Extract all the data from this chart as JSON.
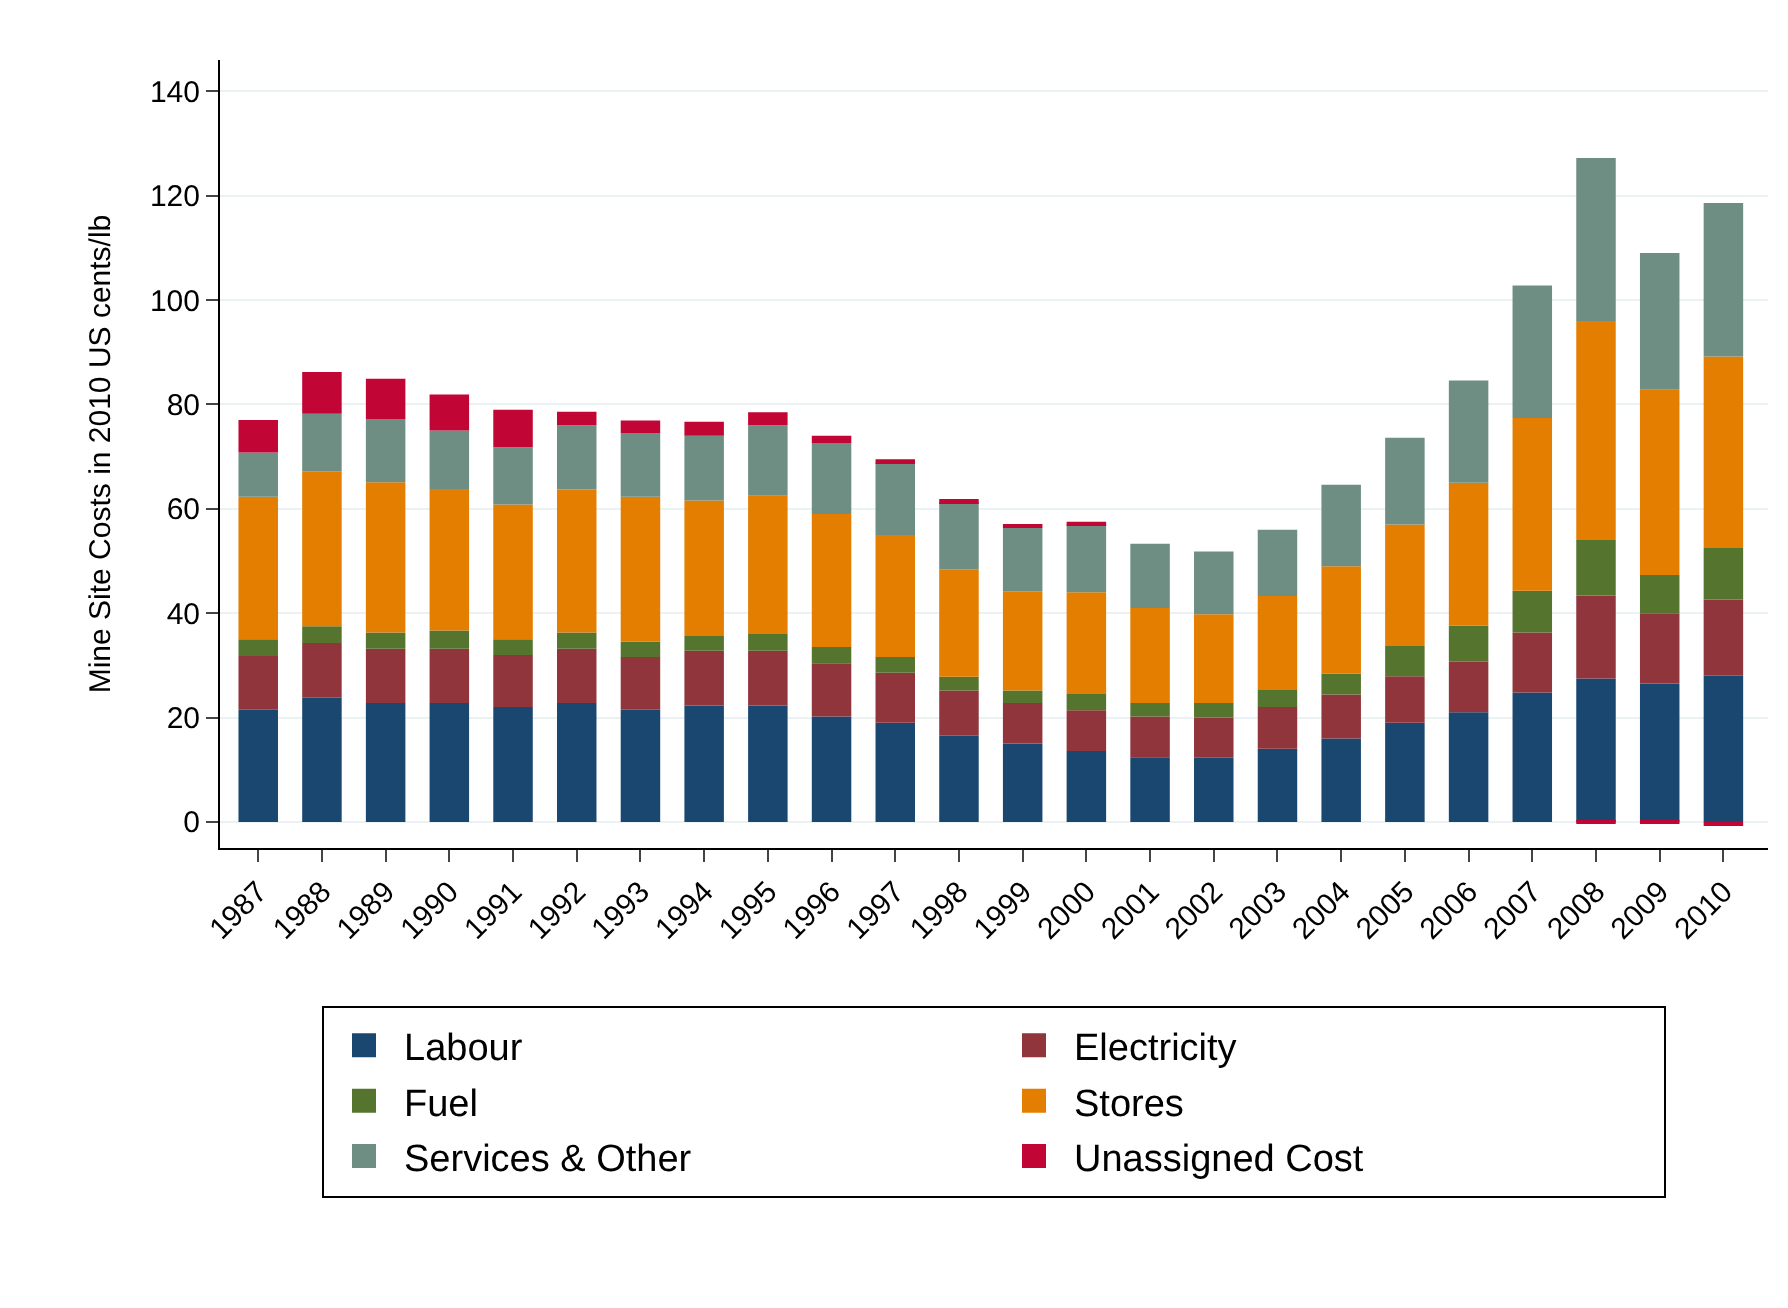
{
  "chart_data": {
    "type": "bar",
    "stacked": true,
    "ylabel": "Mine Site Costs in 2010 US cents/lb",
    "categories": [
      "1987",
      "1988",
      "1989",
      "1990",
      "1991",
      "1992",
      "1993",
      "1994",
      "1995",
      "1996",
      "1997",
      "1998",
      "1999",
      "2000",
      "2001",
      "2002",
      "2003",
      "2004",
      "2005",
      "2006",
      "2007",
      "2008",
      "2009",
      "2010"
    ],
    "series": [
      {
        "name": "Labour",
        "color": "#1a476f",
        "values": [
          21.5,
          23.8,
          22.8,
          22.8,
          22.0,
          22.8,
          21.5,
          22.3,
          22.3,
          20.2,
          19.0,
          16.5,
          15.0,
          13.6,
          12.4,
          12.3,
          14.0,
          16.0,
          19.0,
          21.0,
          24.8,
          27.5,
          26.5,
          28.0
        ]
      },
      {
        "name": "Electricity",
        "color": "#90353b",
        "values": [
          10.3,
          10.5,
          10.4,
          10.4,
          10.0,
          10.4,
          10.1,
          10.5,
          10.5,
          10.2,
          9.6,
          8.7,
          7.8,
          7.8,
          7.8,
          7.7,
          8.0,
          8.4,
          8.9,
          9.7,
          11.5,
          15.9,
          13.5,
          14.6
        ]
      },
      {
        "name": "Fuel",
        "color": "#55752f",
        "values": [
          3.2,
          3.2,
          3.1,
          3.5,
          3.0,
          3.1,
          2.9,
          2.8,
          3.2,
          3.1,
          3.0,
          2.6,
          2.4,
          3.1,
          2.6,
          2.8,
          3.3,
          4.0,
          5.8,
          6.9,
          8.0,
          10.6,
          7.3,
          9.9
        ]
      },
      {
        "name": "Stores",
        "color": "#e37e00",
        "values": [
          27.3,
          29.7,
          28.8,
          27.1,
          25.8,
          27.4,
          27.8,
          26.0,
          26.5,
          25.5,
          23.4,
          20.6,
          19.0,
          19.5,
          18.2,
          17.0,
          18.0,
          20.6,
          23.3,
          27.4,
          33.1,
          42.0,
          35.5,
          36.7
        ]
      },
      {
        "name": "Services & Other",
        "color": "#6e8e84",
        "values": [
          8.5,
          11.0,
          12.1,
          11.2,
          11.0,
          12.3,
          12.2,
          12.4,
          13.5,
          13.5,
          13.8,
          12.9,
          12.2,
          13.0,
          12.3,
          12.0,
          12.7,
          15.6,
          16.6,
          19.6,
          25.4,
          31.2,
          26.2,
          29.4
        ]
      },
      {
        "name": "Unassigned Cost",
        "color": "#c10534",
        "values": [
          6.2,
          8.0,
          7.7,
          6.9,
          7.2,
          2.6,
          2.4,
          2.7,
          2.5,
          1.5,
          0.7,
          0.6,
          0.5,
          0.5,
          null,
          null,
          null,
          null,
          null,
          null,
          null,
          -0.3,
          -0.4,
          -0.8
        ]
      }
    ],
    "ylim": [
      -5,
      146
    ],
    "yticks": [
      0,
      20,
      40,
      60,
      80,
      100,
      120,
      140
    ],
    "grid": "y",
    "legend": "bottom"
  }
}
